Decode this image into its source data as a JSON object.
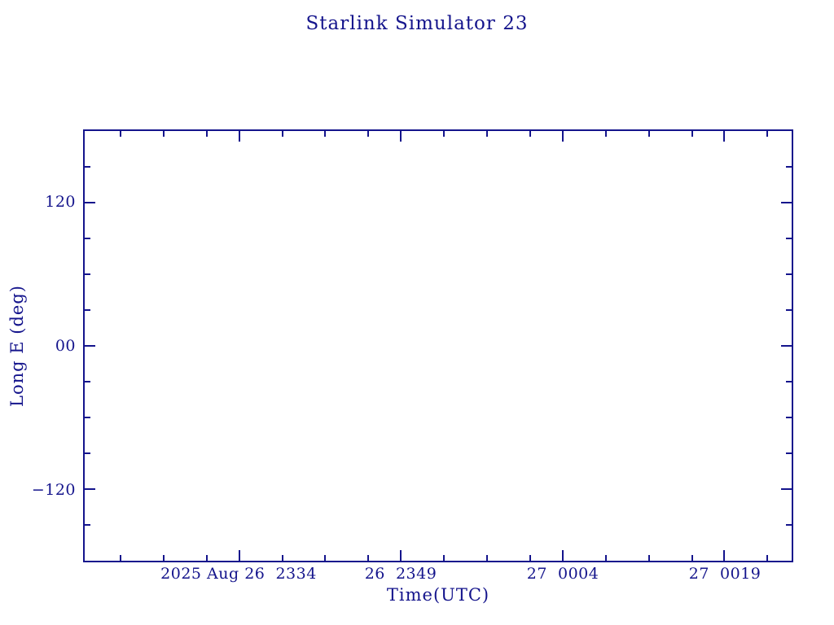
{
  "accent_color": "#14148C",
  "chart_data": {
    "type": "line",
    "title": "Starlink Simulator 23",
    "xlabel": "Time(UTC)",
    "ylabel": "Long E (deg)",
    "grid": false,
    "legend": "none",
    "series": [],
    "note": "empty plot frame - no data points drawn",
    "x_axis": {
      "unit": "minutes from axis start (axis spans ~2025 Aug 26 23:20 UTC to Aug 27 00:26 UTC)",
      "range_min": 0,
      "range_max": 65.57,
      "major_ticks": [
        {
          "label": "2025 Aug 26  2334",
          "t": 14.32
        },
        {
          "label": "26  2349",
          "t": 29.32
        },
        {
          "label": "27  0004",
          "t": 44.32
        },
        {
          "label": "27  0019",
          "t": 59.32
        }
      ],
      "minor_ticks": [
        3.32,
        7.32,
        11.32,
        18.32,
        22.32,
        26.32,
        33.32,
        37.32,
        41.32,
        48.32,
        52.32,
        56.32,
        63.32
      ]
    },
    "y_axis": {
      "range_min": -180,
      "range_max": 180,
      "major_ticks": [
        {
          "label": "120",
          "value": 120
        },
        {
          "label": "00",
          "value": 0
        },
        {
          "label": "−120",
          "value": -120
        }
      ],
      "minor_ticks": [
        150,
        90,
        60,
        30,
        -30,
        -60,
        -90,
        -150
      ]
    }
  }
}
